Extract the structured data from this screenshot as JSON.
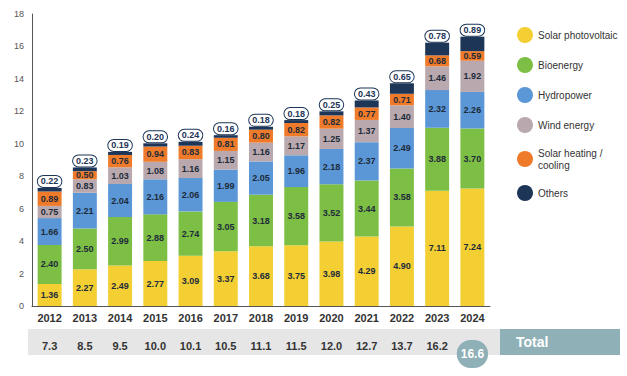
{
  "chart_data": {
    "type": "bar",
    "stacked": true,
    "data_labels": true,
    "legend": "right",
    "grid": false,
    "categories": [
      "2012",
      "2013",
      "2014",
      "2015",
      "2016",
      "2017",
      "2018",
      "2019",
      "2020",
      "2021",
      "2022",
      "2023",
      "2024"
    ],
    "ylim": [
      0,
      18
    ],
    "yticks": [
      0,
      2,
      4,
      6,
      8,
      10,
      12,
      14,
      16,
      18
    ],
    "series": [
      {
        "name": "Solar photovoltaic",
        "color": "#f3cf33",
        "values": [
          1.36,
          2.27,
          2.49,
          2.77,
          3.09,
          3.37,
          3.68,
          3.75,
          3.98,
          4.29,
          4.9,
          7.11,
          7.24
        ],
        "value_labels": [
          "1.36",
          "2.27",
          "2.49",
          "2.77",
          "3.09",
          "3.37",
          "3.68",
          "3.75",
          "3.98",
          "4.29",
          "4.90",
          "7.11",
          "7.24"
        ]
      },
      {
        "name": "Bioenergy",
        "color": "#7dbf45",
        "values": [
          2.4,
          2.5,
          2.99,
          2.88,
          2.74,
          3.05,
          3.18,
          3.58,
          3.52,
          3.44,
          3.58,
          3.88,
          3.7
        ],
        "value_labels": [
          "2.40",
          "2.50",
          "2.99",
          "2.88",
          "2.74",
          "3.05",
          "3.18",
          "3.58",
          "3.52",
          "3.44",
          "3.58",
          "3.88",
          "3.70"
        ]
      },
      {
        "name": "Hydropower",
        "color": "#5b97d6",
        "values": [
          1.66,
          2.21,
          2.04,
          2.16,
          2.06,
          1.99,
          2.05,
          1.96,
          2.18,
          2.37,
          2.49,
          2.32,
          2.26
        ],
        "value_labels": [
          "1.66",
          "2.21",
          "2.04",
          "2.16",
          "2.06",
          "1.99",
          "2.05",
          "1.96",
          "2.18",
          "2.37",
          "2.49",
          "2.32",
          "2.26"
        ]
      },
      {
        "name": "Wind energy",
        "color": "#b9a9ae",
        "values": [
          0.75,
          0.83,
          1.03,
          1.08,
          1.16,
          1.15,
          1.16,
          1.17,
          1.25,
          1.37,
          1.4,
          1.46,
          1.92
        ],
        "value_labels": [
          "0.75",
          "0.83",
          "1.03",
          "1.08",
          "1.16",
          "1.15",
          "1.16",
          "1.17",
          "1.25",
          "1.37",
          "1.40",
          "1.46",
          "1.92"
        ]
      },
      {
        "name": "Solar heating / cooling",
        "color": "#ef7b2a",
        "values": [
          0.89,
          0.5,
          0.76,
          0.94,
          0.83,
          0.81,
          0.8,
          0.82,
          0.82,
          0.77,
          0.71,
          0.68,
          0.59
        ],
        "value_labels": [
          "0.89",
          "0.50",
          "0.76",
          "0.94",
          "0.83",
          "0.81",
          "0.80",
          "0.82",
          "0.82",
          "0.77",
          "0.71",
          "0.68",
          "0.59"
        ]
      },
      {
        "name": "Others",
        "color": "#1d3557",
        "values": [
          0.22,
          0.23,
          0.19,
          0.2,
          0.24,
          0.16,
          0.18,
          0.18,
          0.25,
          0.43,
          0.65,
          0.78,
          0.89
        ],
        "value_labels": [
          "0.22",
          "0.23",
          "0.19",
          "0.20",
          "0.24",
          "0.16",
          "0.18",
          "0.18",
          "0.25",
          "0.43",
          "0.65",
          "0.78",
          "0.89"
        ]
      }
    ],
    "totals": {
      "label": "Total",
      "values": [
        7.3,
        8.5,
        9.5,
        10.0,
        10.1,
        10.5,
        11.1,
        11.5,
        12.0,
        12.7,
        13.7,
        16.2,
        16.6
      ],
      "value_labels": [
        "7.3",
        "8.5",
        "9.5",
        "10.0",
        "10.1",
        "10.5",
        "11.1",
        "11.5",
        "12.0",
        "12.7",
        "13.7",
        "16.2",
        "16.6"
      ]
    }
  }
}
